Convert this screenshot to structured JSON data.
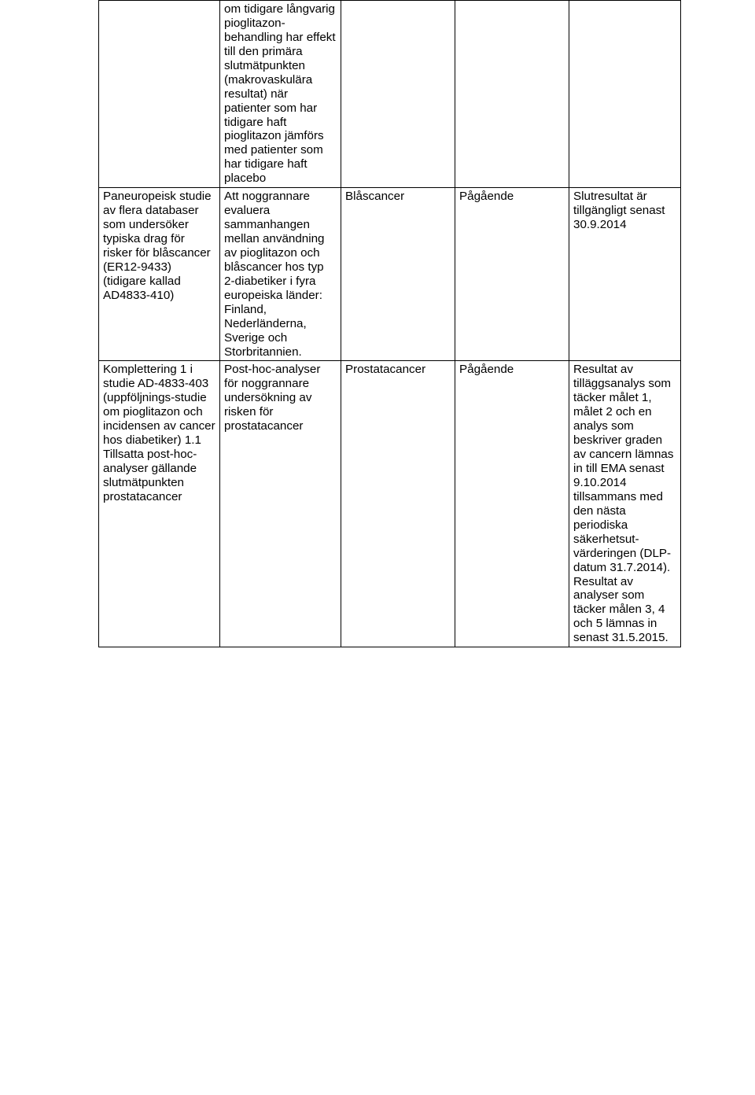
{
  "table": {
    "rows": [
      {
        "col1": "",
        "col2": "om tidigare långvarig pioglitazon-behandling har effekt till den primära slutmätpunkten (makrovaskulära resultat) när patienter som har tidigare haft pioglitazon jämförs med patienter som har tidigare haft placebo",
        "col3": "",
        "col4": "",
        "col5": ""
      },
      {
        "col1": "Paneuropeisk studie av flera databaser som undersöker typiska drag för risker för blåscancer (ER12-9433) (tidigare kallad AD4833-410)",
        "col2": "Att noggrannare evaluera sammanhangen mellan användning av pioglitazon och blåscancer hos typ 2-diabetiker i fyra europeiska länder: Finland, Nederländerna, Sverige och Storbritannien.",
        "col3": "Blåscancer",
        "col4": "Pågående",
        "col5": "Slutresultat är tillgängligt senast 30.9.2014"
      },
      {
        "col1": "Komplettering 1 i studie AD-4833-403 (uppföljnings-studie om pioglitazon och incidensen av cancer hos diabetiker) 1.1\nTillsatta post-hoc-analyser gällande slutmätpunkten prostatacancer",
        "col2": "Post-hoc-analyser för noggrannare undersökning av risken för prostatacancer",
        "col3": "Prostatacancer",
        "col4": "Pågående",
        "col5": "Resultat av tilläggsanalys som täcker målet 1, målet 2 och en analys som beskriver graden av cancern lämnas in till EMA senast 9.10.2014 tillsammans med den nästa periodiska säkerhetsut-värderingen (DLP-datum 31.7.2014). Resultat av analyser som täcker målen 3, 4 och 5 lämnas in senast 31.5.2015."
      }
    ]
  }
}
